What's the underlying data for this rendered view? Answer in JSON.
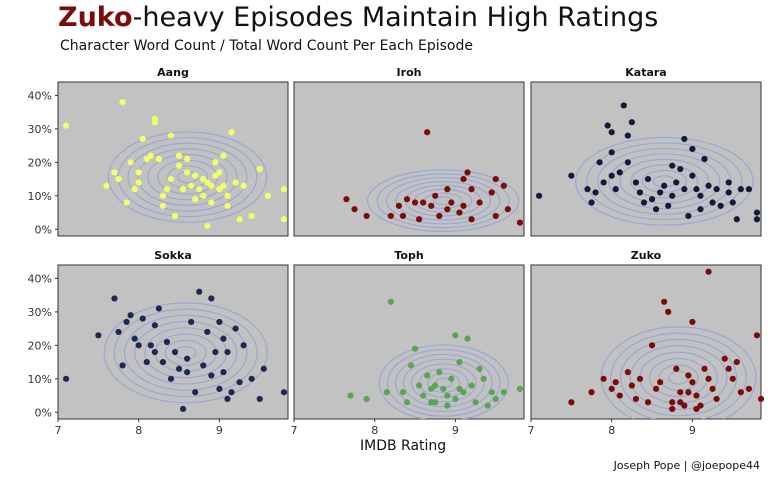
{
  "header": {
    "title_highlight": "Zuko",
    "title_rest": "-heavy Episodes Maintain High Ratings",
    "subtitle": "Character Word Count / Total Word Count Per Each Episode"
  },
  "footer": {
    "caption": "Joseph Pope | @joepope44"
  },
  "colors": {
    "panel_bg": "#c2c2c2",
    "contour": "#9ba8d6",
    "title_accent": "#7a0c0c"
  },
  "chart_data": {
    "type": "scatter",
    "facet_layout": "2 rows x 3 columns",
    "xlabel": "IMDB Rating",
    "ylabel": "",
    "xlim": [
      7.0,
      9.85
    ],
    "ylim": [
      -0.02,
      0.44
    ],
    "x_ticks": [
      7,
      8,
      9
    ],
    "y_ticks": [
      0,
      0.1,
      0.2,
      0.3,
      0.4
    ],
    "y_tick_labels": [
      "0%",
      "10%",
      "20%",
      "30%",
      "40%"
    ],
    "grid": false,
    "overlay": "2D density contours",
    "panels": [
      {
        "name": "Aang",
        "color": "#f2ff66",
        "points": [
          [
            7.1,
            0.31
          ],
          [
            7.6,
            0.13
          ],
          [
            7.7,
            0.17
          ],
          [
            7.75,
            0.15
          ],
          [
            7.8,
            0.38
          ],
          [
            7.85,
            0.08
          ],
          [
            7.9,
            0.2
          ],
          [
            7.95,
            0.12
          ],
          [
            8.0,
            0.17
          ],
          [
            8.0,
            0.14
          ],
          [
            8.05,
            0.27
          ],
          [
            8.1,
            0.21
          ],
          [
            8.15,
            0.22
          ],
          [
            8.2,
            0.33
          ],
          [
            8.2,
            0.32
          ],
          [
            8.25,
            0.21
          ],
          [
            8.3,
            0.1
          ],
          [
            8.3,
            0.07
          ],
          [
            8.35,
            0.12
          ],
          [
            8.4,
            0.15
          ],
          [
            8.4,
            0.28
          ],
          [
            8.45,
            0.04
          ],
          [
            8.5,
            0.22
          ],
          [
            8.5,
            0.19
          ],
          [
            8.55,
            0.12
          ],
          [
            8.6,
            0.21
          ],
          [
            8.6,
            0.17
          ],
          [
            8.65,
            0.13
          ],
          [
            8.7,
            0.09
          ],
          [
            8.7,
            0.16
          ],
          [
            8.75,
            0.12
          ],
          [
            8.8,
            0.15
          ],
          [
            8.8,
            0.1
          ],
          [
            8.85,
            0.14
          ],
          [
            8.9,
            0.13
          ],
          [
            8.9,
            0.08
          ],
          [
            8.95,
            0.16
          ],
          [
            9.0,
            0.12
          ],
          [
            9.0,
            0.17
          ],
          [
            9.05,
            0.13
          ],
          [
            9.1,
            0.1
          ],
          [
            9.1,
            0.07
          ],
          [
            9.15,
            0.29
          ],
          [
            9.2,
            0.14
          ],
          [
            9.25,
            0.03
          ],
          [
            9.3,
            0.13
          ],
          [
            9.4,
            0.04
          ],
          [
            9.5,
            0.18
          ],
          [
            9.6,
            0.1
          ],
          [
            9.8,
            0.12
          ],
          [
            9.8,
            0.03
          ],
          [
            9.05,
            0.22
          ],
          [
            8.95,
            0.2
          ],
          [
            8.85,
            0.01
          ]
        ]
      },
      {
        "name": "Iroh",
        "color": "#7a0c0c",
        "points": [
          [
            7.65,
            0.09
          ],
          [
            7.75,
            0.06
          ],
          [
            7.9,
            0.04
          ],
          [
            8.2,
            0.04
          ],
          [
            8.3,
            0.07
          ],
          [
            8.35,
            0.04
          ],
          [
            8.4,
            0.09
          ],
          [
            8.5,
            0.08
          ],
          [
            8.55,
            0.03
          ],
          [
            8.6,
            0.08
          ],
          [
            8.65,
            0.29
          ],
          [
            8.7,
            0.07
          ],
          [
            8.75,
            0.1
          ],
          [
            8.8,
            0.04
          ],
          [
            8.9,
            0.06
          ],
          [
            8.9,
            0.12
          ],
          [
            8.95,
            0.08
          ],
          [
            9.05,
            0.05
          ],
          [
            9.1,
            0.07
          ],
          [
            9.1,
            0.15
          ],
          [
            9.15,
            0.17
          ],
          [
            9.2,
            0.12
          ],
          [
            9.2,
            0.03
          ],
          [
            9.3,
            0.08
          ],
          [
            9.45,
            0.11
          ],
          [
            9.5,
            0.15
          ],
          [
            9.5,
            0.04
          ],
          [
            9.6,
            0.13
          ],
          [
            9.65,
            0.06
          ],
          [
            9.8,
            0.02
          ]
        ]
      },
      {
        "name": "Katara",
        "color": "#141a3a",
        "points": [
          [
            7.1,
            0.1
          ],
          [
            7.5,
            0.16
          ],
          [
            7.7,
            0.12
          ],
          [
            7.75,
            0.08
          ],
          [
            7.8,
            0.11
          ],
          [
            7.85,
            0.2
          ],
          [
            7.9,
            0.14
          ],
          [
            7.95,
            0.31
          ],
          [
            8.0,
            0.29
          ],
          [
            8.0,
            0.23
          ],
          [
            8.0,
            0.16
          ],
          [
            8.05,
            0.12
          ],
          [
            8.1,
            0.17
          ],
          [
            8.15,
            0.37
          ],
          [
            8.2,
            0.28
          ],
          [
            8.2,
            0.2
          ],
          [
            8.25,
            0.32
          ],
          [
            8.3,
            0.14
          ],
          [
            8.35,
            0.11
          ],
          [
            8.4,
            0.08
          ],
          [
            8.45,
            0.15
          ],
          [
            8.5,
            0.09
          ],
          [
            8.55,
            0.06
          ],
          [
            8.6,
            0.11
          ],
          [
            8.65,
            0.13
          ],
          [
            8.7,
            0.07
          ],
          [
            8.75,
            0.19
          ],
          [
            8.75,
            0.1
          ],
          [
            8.8,
            0.14
          ],
          [
            8.85,
            0.18
          ],
          [
            8.9,
            0.27
          ],
          [
            8.9,
            0.12
          ],
          [
            8.95,
            0.04
          ],
          [
            9.0,
            0.24
          ],
          [
            9.0,
            0.16
          ],
          [
            9.05,
            0.12
          ],
          [
            9.1,
            0.1
          ],
          [
            9.1,
            0.06
          ],
          [
            9.15,
            0.21
          ],
          [
            9.2,
            0.13
          ],
          [
            9.25,
            0.08
          ],
          [
            9.3,
            0.12
          ],
          [
            9.35,
            0.07
          ],
          [
            9.45,
            0.11
          ],
          [
            9.5,
            0.08
          ],
          [
            9.55,
            0.03
          ],
          [
            9.6,
            0.12
          ],
          [
            9.7,
            0.12
          ],
          [
            9.8,
            0.05
          ],
          [
            9.8,
            0.03
          ],
          [
            9.45,
            0.14
          ]
        ]
      },
      {
        "name": "Sokka",
        "color": "#1c2a4d",
        "points": [
          [
            7.1,
            0.1
          ],
          [
            7.5,
            0.23
          ],
          [
            7.7,
            0.34
          ],
          [
            7.75,
            0.24
          ],
          [
            7.8,
            0.14
          ],
          [
            7.85,
            0.27
          ],
          [
            7.9,
            0.29
          ],
          [
            7.95,
            0.22
          ],
          [
            8.0,
            0.2
          ],
          [
            8.05,
            0.28
          ],
          [
            8.1,
            0.15
          ],
          [
            8.15,
            0.2
          ],
          [
            8.2,
            0.26
          ],
          [
            8.2,
            0.18
          ],
          [
            8.25,
            0.31
          ],
          [
            8.3,
            0.15
          ],
          [
            8.35,
            0.21
          ],
          [
            8.4,
            0.1
          ],
          [
            8.45,
            0.18
          ],
          [
            8.5,
            0.13
          ],
          [
            8.55,
            0.01
          ],
          [
            8.6,
            0.16
          ],
          [
            8.65,
            0.27
          ],
          [
            8.7,
            0.06
          ],
          [
            8.75,
            0.36
          ],
          [
            8.8,
            0.14
          ],
          [
            8.85,
            0.24
          ],
          [
            8.9,
            0.34
          ],
          [
            8.9,
            0.11
          ],
          [
            8.95,
            0.18
          ],
          [
            9.0,
            0.27
          ],
          [
            9.0,
            0.07
          ],
          [
            9.05,
            0.12
          ],
          [
            9.1,
            0.18
          ],
          [
            9.1,
            0.04
          ],
          [
            9.15,
            0.06
          ],
          [
            9.2,
            0.25
          ],
          [
            9.25,
            0.09
          ],
          [
            9.3,
            0.2
          ],
          [
            9.4,
            0.1
          ],
          [
            9.5,
            0.04
          ],
          [
            9.55,
            0.13
          ],
          [
            9.8,
            0.06
          ],
          [
            9.05,
            0.22
          ],
          [
            8.6,
            0.12
          ]
        ]
      },
      {
        "name": "Toph",
        "color": "#5aa455",
        "points": [
          [
            7.7,
            0.05
          ],
          [
            7.9,
            0.04
          ],
          [
            8.15,
            0.06
          ],
          [
            8.2,
            0.33
          ],
          [
            8.35,
            0.06
          ],
          [
            8.4,
            0.03
          ],
          [
            8.5,
            0.19
          ],
          [
            8.55,
            0.08
          ],
          [
            8.6,
            0.05
          ],
          [
            8.65,
            0.11
          ],
          [
            8.7,
            0.03
          ],
          [
            8.7,
            0.07
          ],
          [
            8.75,
            0.08
          ],
          [
            8.8,
            0.12
          ],
          [
            8.85,
            0.07
          ],
          [
            8.9,
            0.05
          ],
          [
            8.95,
            0.1
          ],
          [
            9.0,
            0.23
          ],
          [
            9.0,
            0.04
          ],
          [
            9.05,
            0.07
          ],
          [
            9.1,
            0.06
          ],
          [
            9.15,
            0.22
          ],
          [
            9.2,
            0.08
          ],
          [
            9.25,
            0.03
          ],
          [
            9.3,
            0.13
          ],
          [
            9.35,
            0.1
          ],
          [
            9.45,
            0.06
          ],
          [
            9.5,
            0.04
          ],
          [
            9.6,
            0.06
          ],
          [
            9.8,
            0.07
          ],
          [
            8.45,
            0.14
          ],
          [
            9.05,
            0.15
          ],
          [
            8.75,
            0.03
          ],
          [
            8.9,
            0.02
          ],
          [
            9.4,
            0.02
          ]
        ]
      },
      {
        "name": "Zuko",
        "color": "#7a0c0c",
        "points": [
          [
            7.5,
            0.03
          ],
          [
            7.75,
            0.06
          ],
          [
            7.9,
            0.1
          ],
          [
            8.0,
            0.07
          ],
          [
            8.05,
            0.09
          ],
          [
            8.1,
            0.05
          ],
          [
            8.2,
            0.12
          ],
          [
            8.25,
            0.08
          ],
          [
            8.3,
            0.04
          ],
          [
            8.35,
            0.1
          ],
          [
            8.45,
            0.03
          ],
          [
            8.5,
            0.2
          ],
          [
            8.55,
            0.07
          ],
          [
            8.6,
            0.09
          ],
          [
            8.65,
            0.33
          ],
          [
            8.7,
            0.3
          ],
          [
            8.75,
            0.03
          ],
          [
            8.75,
            0.01
          ],
          [
            8.8,
            0.13
          ],
          [
            8.85,
            0.06
          ],
          [
            8.9,
            0.02
          ],
          [
            8.95,
            0.11
          ],
          [
            8.95,
            0.06
          ],
          [
            9.0,
            0.27
          ],
          [
            9.0,
            0.09
          ],
          [
            9.05,
            0.05
          ],
          [
            9.1,
            0.02
          ],
          [
            9.15,
            0.13
          ],
          [
            9.2,
            0.42
          ],
          [
            9.2,
            0.1
          ],
          [
            9.25,
            0.07
          ],
          [
            9.3,
            0.04
          ],
          [
            9.4,
            0.16
          ],
          [
            9.45,
            0.13
          ],
          [
            9.5,
            0.1
          ],
          [
            9.55,
            0.15
          ],
          [
            9.6,
            0.06
          ],
          [
            9.7,
            0.07
          ],
          [
            9.8,
            0.23
          ],
          [
            9.85,
            0.04
          ],
          [
            8.85,
            0.03
          ],
          [
            9.05,
            0.01
          ]
        ]
      }
    ]
  }
}
